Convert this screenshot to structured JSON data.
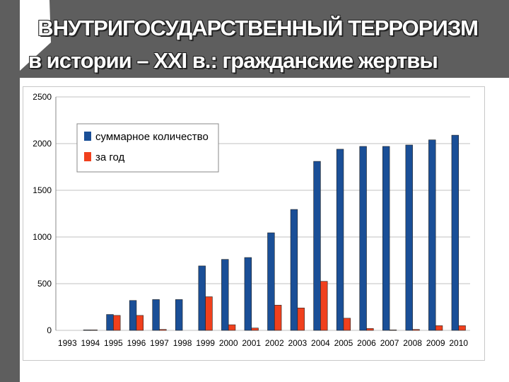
{
  "slide": {
    "title_line1": "ВНУТРИГОСУДАРСТВЕННЫЙ ТЕРРОРИЗМ",
    "title_line2": "в истории – XXI в.: гражданские жертвы"
  },
  "colors": {
    "total": "#1a4f97",
    "per_year": "#f0401d",
    "grid": "#c0c0c0"
  },
  "chart_data": {
    "type": "bar",
    "categories": [
      "1993",
      "1994",
      "1995",
      "1996",
      "1997",
      "1998",
      "1999",
      "2000",
      "2001",
      "2002",
      "2003",
      "2004",
      "2005",
      "2006",
      "2007",
      "2008",
      "2009",
      "2010"
    ],
    "series": [
      {
        "name": "суммарное количество",
        "values": [
          0,
          5,
          170,
          320,
          330,
          330,
          690,
          760,
          780,
          1045,
          1295,
          1810,
          1940,
          1970,
          1970,
          1985,
          2040,
          2090
        ]
      },
      {
        "name": "за год",
        "values": [
          0,
          5,
          160,
          160,
          10,
          0,
          360,
          60,
          25,
          270,
          240,
          525,
          130,
          20,
          5,
          10,
          50,
          50
        ]
      }
    ],
    "yticks": [
      0,
      500,
      1000,
      1500,
      2000,
      2500
    ],
    "ylim": [
      0,
      2500
    ],
    "grid": true,
    "legend_position": "top-left"
  }
}
